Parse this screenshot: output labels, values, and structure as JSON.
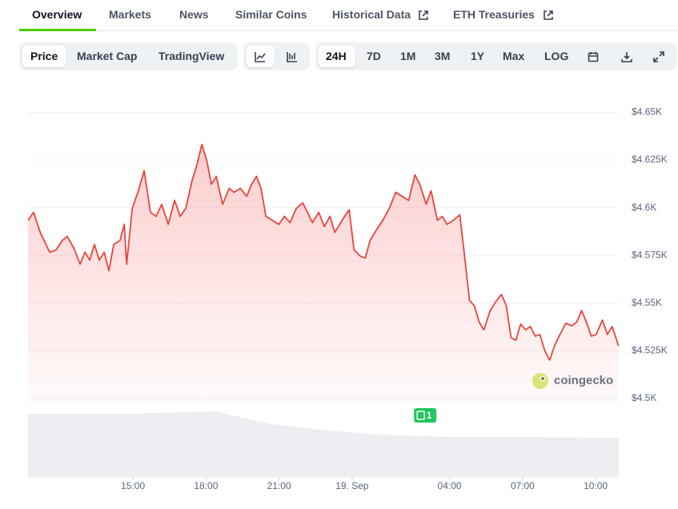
{
  "tabs": [
    "Overview",
    "Markets",
    "News",
    "Similar Coins",
    "Historical Data",
    "ETH Treasuries"
  ],
  "toolbar": {
    "views": [
      "Price",
      "Market Cap",
      "TradingView"
    ],
    "ranges": [
      "24H",
      "7D",
      "1M",
      "3M",
      "1Y",
      "Max",
      "LOG"
    ]
  },
  "chart_data": {
    "type": "line",
    "color": "#e8453c",
    "grid": true,
    "watermark": "coingecko",
    "annotations": [
      {
        "x": 27.0,
        "label": "1"
      }
    ],
    "xlim": [
      10.69,
      34.95
    ],
    "xticks": [
      {
        "value": 15,
        "label": "15:00"
      },
      {
        "value": 18,
        "label": "18:00"
      },
      {
        "value": 21,
        "label": "21:00"
      },
      {
        "value": 24,
        "label": "19. Sep"
      },
      {
        "value": 28,
        "label": "04:00"
      },
      {
        "value": 31,
        "label": "07:00"
      },
      {
        "value": 34,
        "label": "10:00"
      }
    ],
    "ylim": [
      4497,
      4667
    ],
    "yticks": [
      {
        "value": 4500,
        "label": "$4.5K"
      },
      {
        "value": 4525,
        "label": "$4.525K"
      },
      {
        "value": 4550,
        "label": "$4.55K"
      },
      {
        "value": 4575,
        "label": "$4.575K"
      },
      {
        "value": 4600,
        "label": "$4.6K"
      },
      {
        "value": 4625,
        "label": "$4.625K"
      },
      {
        "value": 4650,
        "label": "$4.65K"
      }
    ],
    "x": [
      10.69,
      10.92,
      11.19,
      11.35,
      11.58,
      11.84,
      12.1,
      12.3,
      12.57,
      12.83,
      13.03,
      13.22,
      13.42,
      13.62,
      13.82,
      14.01,
      14.21,
      14.47,
      14.64,
      14.74,
      14.97,
      15.2,
      15.46,
      15.72,
      15.95,
      16.18,
      16.45,
      16.71,
      16.94,
      17.17,
      17.43,
      17.63,
      17.83,
      18.03,
      18.22,
      18.42,
      18.68,
      18.95,
      19.15,
      19.41,
      19.67,
      19.87,
      20.07,
      20.26,
      20.46,
      20.72,
      20.99,
      21.22,
      21.45,
      21.71,
      21.97,
      22.17,
      22.37,
      22.63,
      22.86,
      23.09,
      23.29,
      23.49,
      23.69,
      23.88,
      24.08,
      24.34,
      24.54,
      24.74,
      25.0,
      25.26,
      25.53,
      25.79,
      26.05,
      26.32,
      26.58,
      26.78,
      27.04,
      27.24,
      27.5,
      27.7,
      27.9,
      28.16,
      28.42,
      28.62,
      28.82,
      29.02,
      29.21,
      29.41,
      29.67,
      29.94,
      30.13,
      30.33,
      30.53,
      30.73,
      30.92,
      31.12,
      31.32,
      31.52,
      31.71,
      31.91,
      32.11,
      32.31,
      32.5,
      32.77,
      33.03,
      33.23,
      33.42,
      33.62,
      33.82,
      34.02,
      34.28,
      34.48,
      34.68,
      34.94
    ],
    "values": [
      4593.4,
      4597.6,
      4587.1,
      4582.9,
      4576.7,
      4577.9,
      4582.9,
      4585.0,
      4578.8,
      4570.4,
      4576.7,
      4572.5,
      4580.8,
      4572.5,
      4576.7,
      4567.0,
      4580.8,
      4582.9,
      4591.3,
      4570.4,
      4599.7,
      4608.1,
      4619.4,
      4597.6,
      4595.5,
      4601.8,
      4591.3,
      4603.9,
      4595.5,
      4599.7,
      4614.4,
      4622.7,
      4633.2,
      4624.8,
      4612.3,
      4616.5,
      4601.8,
      4610.2,
      4608.1,
      4610.2,
      4606.0,
      4612.3,
      4616.5,
      4610.2,
      4595.5,
      4593.4,
      4591.3,
      4595.5,
      4592.2,
      4599.7,
      4602.6,
      4597.6,
      4592.2,
      4597.6,
      4590.1,
      4595.5,
      4587.1,
      4591.3,
      4595.5,
      4598.9,
      4577.9,
      4574.6,
      4573.7,
      4582.9,
      4588.4,
      4593.4,
      4599.7,
      4608.1,
      4606.0,
      4603.9,
      4617.3,
      4612.3,
      4601.8,
      4608.9,
      4593.4,
      4595.5,
      4591.3,
      4593.4,
      4596.3,
      4574.6,
      4551.5,
      4548.6,
      4540.2,
      4536.0,
      4546.1,
      4551.5,
      4554.5,
      4548.6,
      4531.8,
      4530.6,
      4539.0,
      4536.0,
      4537.7,
      4532.7,
      4533.5,
      4525.1,
      4520.1,
      4527.6,
      4532.7,
      4539.4,
      4538.1,
      4540.2,
      4546.1,
      4540.2,
      4532.7,
      4533.5,
      4541.1,
      4533.5,
      4537.7,
      4527.6
    ]
  }
}
